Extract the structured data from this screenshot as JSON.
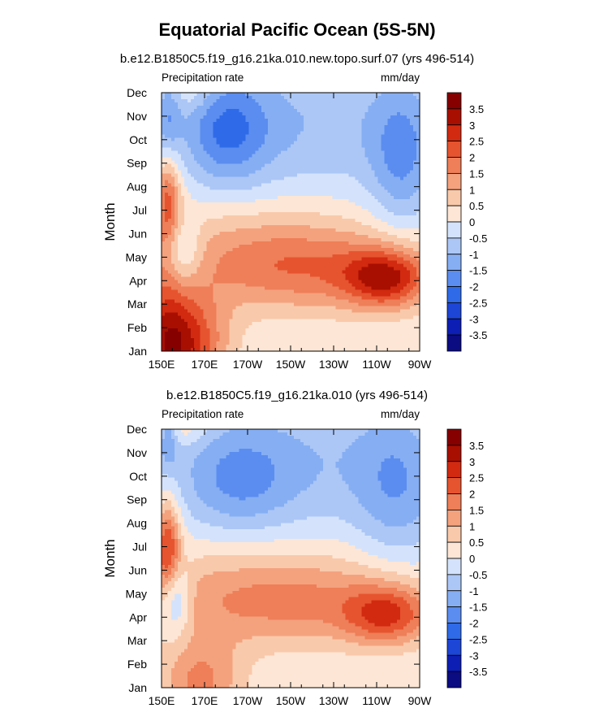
{
  "title": "Equatorial Pacific Ocean (5S-5N)",
  "chart_data": [
    {
      "type": "heatmap",
      "subtitle": "b.e12.B1850C5.f19_g16.21ka.010.new.topo.surf.07 (yrs 496-514)",
      "left_string": "Precipitation rate",
      "right_string": "mm/day",
      "ylabel": "Month",
      "x_ticks": [
        "150E",
        "170E",
        "170W",
        "150W",
        "130W",
        "110W",
        "90W"
      ],
      "y_ticks": [
        "Jan",
        "Feb",
        "Mar",
        "Apr",
        "May",
        "Jun",
        "Jul",
        "Aug",
        "Sep",
        "Oct",
        "Nov",
        "Dec"
      ],
      "x_range": [
        150,
        270
      ],
      "colorbar_labels": [
        "3.5",
        "3",
        "2.5",
        "2",
        "1.5",
        "1",
        "0.5",
        "0",
        "-0.5",
        "-1",
        "-1.5",
        "-2",
        "-2.5",
        "-3",
        "-3.5"
      ],
      "features": [
        {
          "lon": 160,
          "month": 0.3,
          "amp": 2.8,
          "sx": 14,
          "sy": 1.6
        },
        {
          "lon": 151,
          "month": 0.5,
          "amp": 1.2,
          "sx": 8,
          "sy": 3
        },
        {
          "lon": 255,
          "month": 3.1,
          "amp": 2.6,
          "sx": 14,
          "sy": 0.9
        },
        {
          "lon": 215,
          "month": 3.4,
          "amp": 1.5,
          "sx": 34,
          "sy": 1.3
        },
        {
          "lon": 190,
          "month": 4.6,
          "amp": 0.8,
          "sx": 50,
          "sy": 1.5
        },
        {
          "lon": 153,
          "month": 6.5,
          "amp": 1.9,
          "sx": 4,
          "sy": 1.3
        },
        {
          "lon": 160,
          "month": 4.2,
          "amp": -1.3,
          "sx": 6,
          "sy": 1.0
        },
        {
          "lon": 180,
          "month": 9.4,
          "amp": -1.6,
          "sx": 14,
          "sy": 1.7
        },
        {
          "lon": 262,
          "month": 8.3,
          "amp": -1.4,
          "sx": 11,
          "sy": 2.3
        },
        {
          "lon": 215,
          "month": 9.7,
          "amp": -0.95,
          "sx": 40,
          "sy": 2.2
        },
        {
          "lon": 153,
          "month": 10.0,
          "amp": -1.1,
          "sx": 4,
          "sy": 1.2
        },
        {
          "lon": 165,
          "month": 11.0,
          "amp": 0.6,
          "sx": 8,
          "sy": 0.6
        }
      ]
    },
    {
      "type": "heatmap",
      "subtitle": "b.e12.B1850C5.f19_g16.21ka.010 (yrs 496-514)",
      "left_string": "Precipitation rate",
      "right_string": "mm/day",
      "ylabel": "Month",
      "x_ticks": [
        "150E",
        "170E",
        "170W",
        "150W",
        "130W",
        "110W",
        "90W"
      ],
      "y_ticks": [
        "Jan",
        "Feb",
        "Mar",
        "Apr",
        "May",
        "Jun",
        "Jul",
        "Aug",
        "Sep",
        "Oct",
        "Nov",
        "Dec"
      ],
      "x_range": [
        150,
        270
      ],
      "colorbar_labels": [
        "3.5",
        "3",
        "2.5",
        "2",
        "1.5",
        "1",
        "0.5",
        "0",
        "-0.5",
        "-1",
        "-1.5",
        "-2",
        "-2.5",
        "-3",
        "-3.5"
      ],
      "features": [
        {
          "lon": 168,
          "month": 0.2,
          "amp": 1.6,
          "sx": 14,
          "sy": 1.4
        },
        {
          "lon": 255,
          "month": 3.1,
          "amp": 2.1,
          "sx": 14,
          "sy": 0.9
        },
        {
          "lon": 210,
          "month": 3.5,
          "amp": 1.2,
          "sx": 40,
          "sy": 1.3
        },
        {
          "lon": 190,
          "month": 4.5,
          "amp": 0.7,
          "sx": 55,
          "sy": 1.6
        },
        {
          "lon": 153,
          "month": 6.0,
          "amp": 2.4,
          "sx": 4,
          "sy": 1.4
        },
        {
          "lon": 156,
          "month": 3.8,
          "amp": -1.6,
          "sx": 5,
          "sy": 1.1
        },
        {
          "lon": 185,
          "month": 8.8,
          "amp": -1.1,
          "sx": 18,
          "sy": 1.6
        },
        {
          "lon": 260,
          "month": 8.5,
          "amp": -1.1,
          "sx": 14,
          "sy": 2.4
        },
        {
          "lon": 215,
          "month": 9.6,
          "amp": -0.9,
          "sx": 45,
          "sy": 2.3
        },
        {
          "lon": 153,
          "month": 10.7,
          "amp": -1.2,
          "sx": 3,
          "sy": 0.9
        },
        {
          "lon": 160,
          "month": 11.0,
          "amp": 0.7,
          "sx": 8,
          "sy": 0.5
        }
      ]
    }
  ],
  "colors": {
    "levels": [
      -3.5,
      -3,
      -2.5,
      -2,
      -1.5,
      -1,
      -0.5,
      0,
      0.5,
      1,
      1.5,
      2,
      2.5,
      3,
      3.5
    ],
    "palette": [
      "#0b0b82",
      "#0d1eb4",
      "#1d45d6",
      "#2f6be8",
      "#5b8df0",
      "#86aef3",
      "#acc7f6",
      "#d4e3fb",
      "#fde6d5",
      "#f9c9ab",
      "#f4a27e",
      "#ee7f58",
      "#e6542f",
      "#d12a10",
      "#a80f00",
      "#860000"
    ]
  }
}
